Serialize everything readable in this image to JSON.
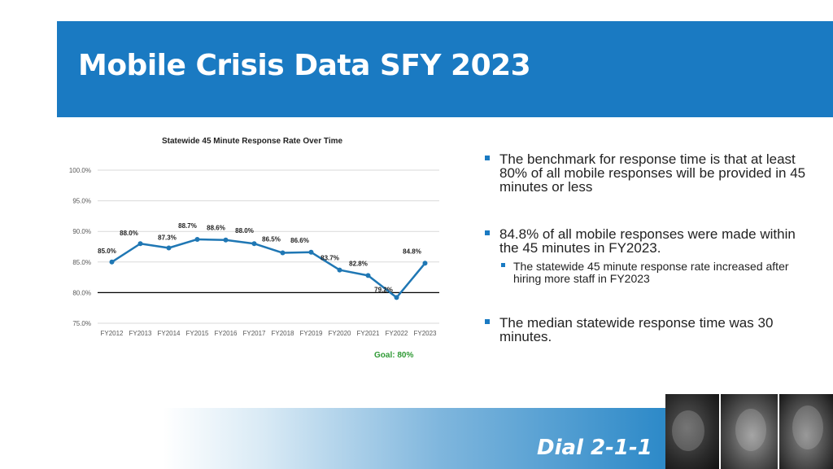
{
  "header": {
    "title": "Mobile Crisis Data SFY 2023",
    "bg_color": "#1a7ac2"
  },
  "chart_data": {
    "type": "line",
    "title": "Statewide 45 Minute Response Rate Over Time",
    "categories": [
      "FY2012",
      "FY2013",
      "FY2014",
      "FY2015",
      "FY2016",
      "FY2017",
      "FY2018",
      "FY2019",
      "FY2020",
      "FY2021",
      "FY2022",
      "FY2023"
    ],
    "series": [
      {
        "values": [
          85.0,
          88.0,
          87.3,
          88.7,
          88.6,
          88.0,
          86.5,
          86.6,
          83.7,
          82.8,
          79.2,
          84.8
        ],
        "labels": [
          "85.0%",
          "88.0%",
          "87.3%",
          "88.7%",
          "88.6%",
          "88.0%",
          "86.5%",
          "86.6%",
          "83.7%",
          "82.8%",
          "79.2%",
          "84.8%"
        ]
      }
    ],
    "yticks": [
      "100.0%",
      "95.0%",
      "90.0%",
      "85.0%",
      "80.0%",
      "75.0%"
    ],
    "ylim": [
      75,
      100
    ],
    "goal": {
      "value": 80,
      "label": "Goal: 80%",
      "color": "#2f9a35"
    },
    "line_color": "#1f77b4",
    "grid": true,
    "legend": "none"
  },
  "bullets": {
    "b1": "The benchmark for response time is that at least 80% of all mobile responses will be provided in 45 minutes or less",
    "b2": "84.8% of all mobile responses were made within the 45 minutes in FY2023.",
    "b2_sub": "The statewide 45 minute response rate increased after hiring more staff in FY2023",
    "b3": "The median statewide response time was 30 minutes."
  },
  "footer": {
    "dial": "Dial 2-1-1"
  }
}
